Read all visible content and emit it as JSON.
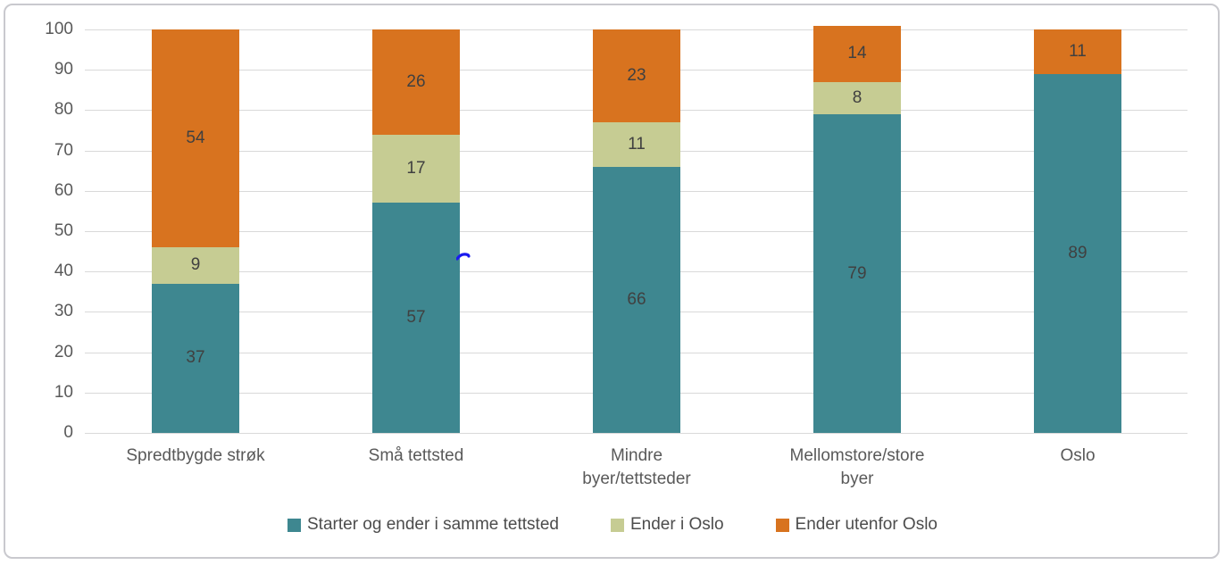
{
  "chart_data": {
    "type": "bar",
    "stacked": true,
    "title": "",
    "xlabel": "",
    "ylabel": "",
    "ylim": [
      0,
      100
    ],
    "yticks": [
      0,
      10,
      20,
      30,
      40,
      50,
      60,
      70,
      80,
      90,
      100
    ],
    "grid": true,
    "legend_position": "bottom",
    "categories": [
      "Spredtbygde strøk",
      "Små tettsted",
      "Mindre byer/tettsteder",
      "Mellomstore/store byer",
      "Oslo"
    ],
    "category_lines": [
      [
        "Spredtbygde strøk"
      ],
      [
        "Små tettsted"
      ],
      [
        "Mindre",
        "byer/tettsteder"
      ],
      [
        "Mellomstore/store",
        "byer"
      ],
      [
        "Oslo"
      ]
    ],
    "series": [
      {
        "name": "Starter og ender i samme tettsted",
        "color": "#3e8790",
        "values": [
          37,
          57,
          66,
          79,
          89
        ]
      },
      {
        "name": "Ender i Oslo",
        "color": "#c6cc93",
        "values": [
          9,
          17,
          11,
          8,
          0
        ]
      },
      {
        "name": "Ender utenfor Oslo",
        "color": "#d8731f",
        "values": [
          54,
          26,
          23,
          14,
          11
        ]
      }
    ]
  },
  "annotations": {
    "blue_pen_mark_color": "#1a1aef"
  },
  "style_colors": {
    "gridline": "#d9d9d9",
    "axis_text": "#595959",
    "data_label_text": "#404040",
    "frame_border": "#c9c9ce"
  }
}
